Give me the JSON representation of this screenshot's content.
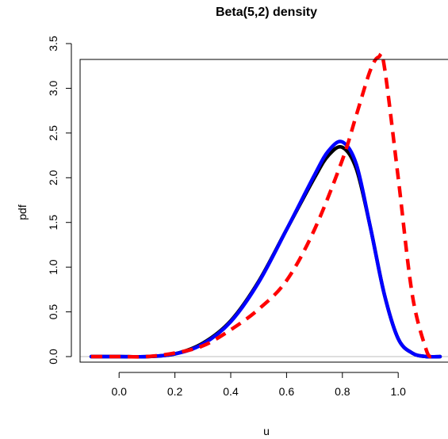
{
  "chart_data": {
    "type": "line",
    "title": "Beta(5,2) density",
    "xlabel": "u",
    "ylabel": "pdf",
    "xlim": [
      -0.1,
      1.15
    ],
    "ylim": [
      0,
      3.5
    ],
    "xticks": [
      0.0,
      0.2,
      0.4,
      0.6,
      0.8,
      1.0
    ],
    "yticks": [
      0.0,
      0.5,
      1.0,
      1.5,
      2.0,
      2.5,
      3.0,
      3.5
    ],
    "xtick_labels": [
      "0.0",
      "0.2",
      "0.4",
      "0.6",
      "0.8",
      "1.0"
    ],
    "ytick_labels": [
      "0.0",
      "0.5",
      "1.0",
      "1.5",
      "2.0",
      "2.5",
      "3.0",
      "3.5"
    ],
    "reference_line": {
      "y": 0,
      "color": "#bebebe"
    },
    "series": [
      {
        "color": "#000000",
        "style": "solid",
        "x": [
          -0.1,
          0.0,
          0.1,
          0.2,
          0.3,
          0.4,
          0.5,
          0.6,
          0.7,
          0.75,
          0.8,
          0.85,
          0.9,
          0.95,
          1.0,
          1.05,
          1.1,
          1.15
        ],
        "y": [
          0.0,
          0.0,
          0.0,
          0.03,
          0.15,
          0.4,
          0.84,
          1.42,
          2.0,
          2.25,
          2.34,
          2.1,
          1.45,
          0.7,
          0.2,
          0.04,
          0.0,
          0.0
        ]
      },
      {
        "color": "#0000ff",
        "style": "solid",
        "x": [
          -0.1,
          0.0,
          0.1,
          0.2,
          0.3,
          0.4,
          0.5,
          0.6,
          0.7,
          0.75,
          0.8,
          0.85,
          0.9,
          0.95,
          1.0,
          1.05,
          1.1,
          1.15
        ],
        "y": [
          0.0,
          0.0,
          0.0,
          0.03,
          0.14,
          0.39,
          0.83,
          1.42,
          2.03,
          2.3,
          2.4,
          2.15,
          1.45,
          0.7,
          0.2,
          0.04,
          0.0,
          0.0
        ]
      },
      {
        "color": "#ff0000",
        "style": "dashed",
        "x": [
          -0.1,
          0.0,
          0.1,
          0.2,
          0.3,
          0.4,
          0.5,
          0.6,
          0.7,
          0.8,
          0.85,
          0.9,
          0.93,
          0.95,
          1.0,
          1.05,
          1.1,
          1.12
        ],
        "y": [
          0.0,
          0.0,
          0.0,
          0.04,
          0.12,
          0.3,
          0.53,
          0.85,
          1.42,
          2.2,
          2.7,
          3.2,
          3.35,
          3.25,
          2.0,
          0.7,
          0.08,
          0.0
        ]
      }
    ]
  }
}
